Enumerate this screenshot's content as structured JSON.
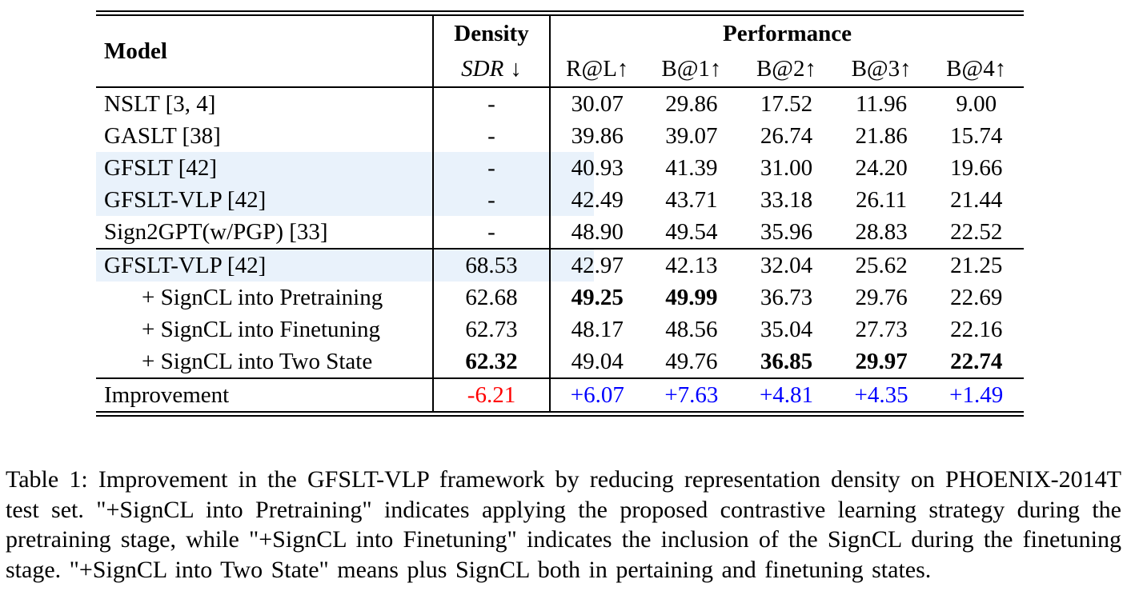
{
  "colors": {
    "highlight": "#e9f2fb",
    "negative": "#ff0000",
    "positive": "#0000ff"
  },
  "table": {
    "headers": {
      "model": "Model",
      "density_group": "Density",
      "density_sub": "SDR",
      "density_sub_arrow": "↓",
      "performance_group": "Performance",
      "perf_cols": [
        "R@L↑",
        "B@1↑",
        "B@2↑",
        "B@3↑",
        "B@4↑"
      ]
    },
    "rows": [
      {
        "section": 1,
        "label": "NSLT [3, 4]",
        "indent": false,
        "highlight": false,
        "sdr": "-",
        "perf": [
          "30.07",
          "29.86",
          "17.52",
          "11.96",
          "9.00"
        ]
      },
      {
        "section": 1,
        "label": "GASLT [38]",
        "indent": false,
        "highlight": false,
        "sdr": "-",
        "perf": [
          "39.86",
          "39.07",
          "26.74",
          "21.86",
          "15.74"
        ]
      },
      {
        "section": 1,
        "label": "GFSLT [42]",
        "indent": false,
        "highlight": true,
        "sdr": "-",
        "perf": [
          "40.93",
          "41.39",
          "31.00",
          "24.20",
          "19.66"
        ]
      },
      {
        "section": 1,
        "label": "GFSLT-VLP [42]",
        "indent": false,
        "highlight": true,
        "sdr": "-",
        "perf": [
          "42.49",
          "43.71",
          "33.18",
          "26.11",
          "21.44"
        ]
      },
      {
        "section": 1,
        "label": "Sign2GPT(w/PGP) [33]",
        "indent": false,
        "highlight": false,
        "sdr": "-",
        "perf": [
          "48.90",
          "49.54",
          "35.96",
          "28.83",
          "22.52"
        ]
      },
      {
        "section": 2,
        "label": "GFSLT-VLP [42]",
        "indent": false,
        "highlight": true,
        "sdr": "68.53",
        "perf": [
          "42.97",
          "42.13",
          "32.04",
          "25.62",
          "21.25"
        ]
      },
      {
        "section": 2,
        "label": "+ SignCL into Pretraining",
        "indent": true,
        "highlight": false,
        "sdr": "62.68",
        "perf": [
          "49.25",
          "49.99",
          "36.73",
          "29.76",
          "22.69"
        ],
        "perf_bold": [
          0,
          1
        ]
      },
      {
        "section": 2,
        "label": "+ SignCL into Finetuning",
        "indent": true,
        "highlight": false,
        "sdr": "62.73",
        "perf": [
          "48.17",
          "48.56",
          "35.04",
          "27.73",
          "22.16"
        ]
      },
      {
        "section": 2,
        "label": "+ SignCL into Two State",
        "indent": true,
        "highlight": false,
        "sdr": "62.32",
        "sdr_bold": true,
        "perf": [
          "49.04",
          "49.76",
          "36.85",
          "29.97",
          "22.74"
        ],
        "perf_bold": [
          2,
          3,
          4
        ]
      },
      {
        "section": 3,
        "label": "Improvement",
        "indent": false,
        "highlight": false,
        "sdr": "-6.21",
        "sdr_color": "red",
        "perf": [
          "+6.07",
          "+7.63",
          "+4.81",
          "+4.35",
          "+1.49"
        ],
        "perf_color": "blue"
      }
    ]
  },
  "caption": {
    "text": "Table 1: Improvement in the GFSLT-VLP framework by reducing representation density on PHOENIX-2014T test set. \"+SignCL into Pretraining\" indicates applying the proposed contrastive learning strategy during the pretraining stage, while \"+SignCL into Finetuning\" indicates the inclusion of the SignCL during the finetuning stage. \"+SignCL into Two State\" means plus SignCL both in pertaining and finetuning states."
  }
}
